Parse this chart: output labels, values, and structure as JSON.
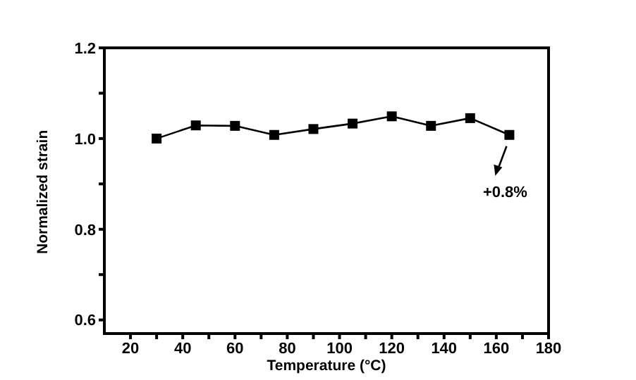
{
  "chart_data": {
    "type": "line",
    "xlabel": "Temperature (°C)",
    "ylabel": "Normalized strain",
    "x": [
      30,
      45,
      60,
      75,
      90,
      105,
      120,
      135,
      150,
      165
    ],
    "series": [
      {
        "color": "#000000",
        "values": [
          1.0,
          1.029,
          1.028,
          1.008,
          1.021,
          1.033,
          1.049,
          1.028,
          1.045,
          1.008
        ]
      }
    ],
    "xlim": [
      10,
      180
    ],
    "xticks": [
      20,
      {
        "value": 30,
        "label": null
      },
      40,
      {
        "value": 50,
        "label": null
      },
      60,
      {
        "value": 70,
        "label": null
      },
      80,
      {
        "value": 90,
        "label": null
      },
      100,
      {
        "value": 110,
        "label": null
      },
      120,
      {
        "value": 130,
        "label": null
      },
      140,
      {
        "value": 150,
        "label": null
      },
      160,
      {
        "value": 170,
        "label": null
      },
      180
    ],
    "ylim": [
      0.57,
      1.2
    ],
    "yticks": [
      0.6,
      {
        "value": 0.7,
        "label": null
      },
      0.8,
      {
        "value": 0.9,
        "label": null
      },
      {
        "value": 1.0,
        "label": "1.0"
      },
      {
        "value": 1.1,
        "label": null
      },
      1.2
    ],
    "marker": "square",
    "line_style": "solid",
    "annotations": [
      {
        "text": "+0.8%",
        "x": 165,
        "y": 1.008
      }
    ]
  }
}
